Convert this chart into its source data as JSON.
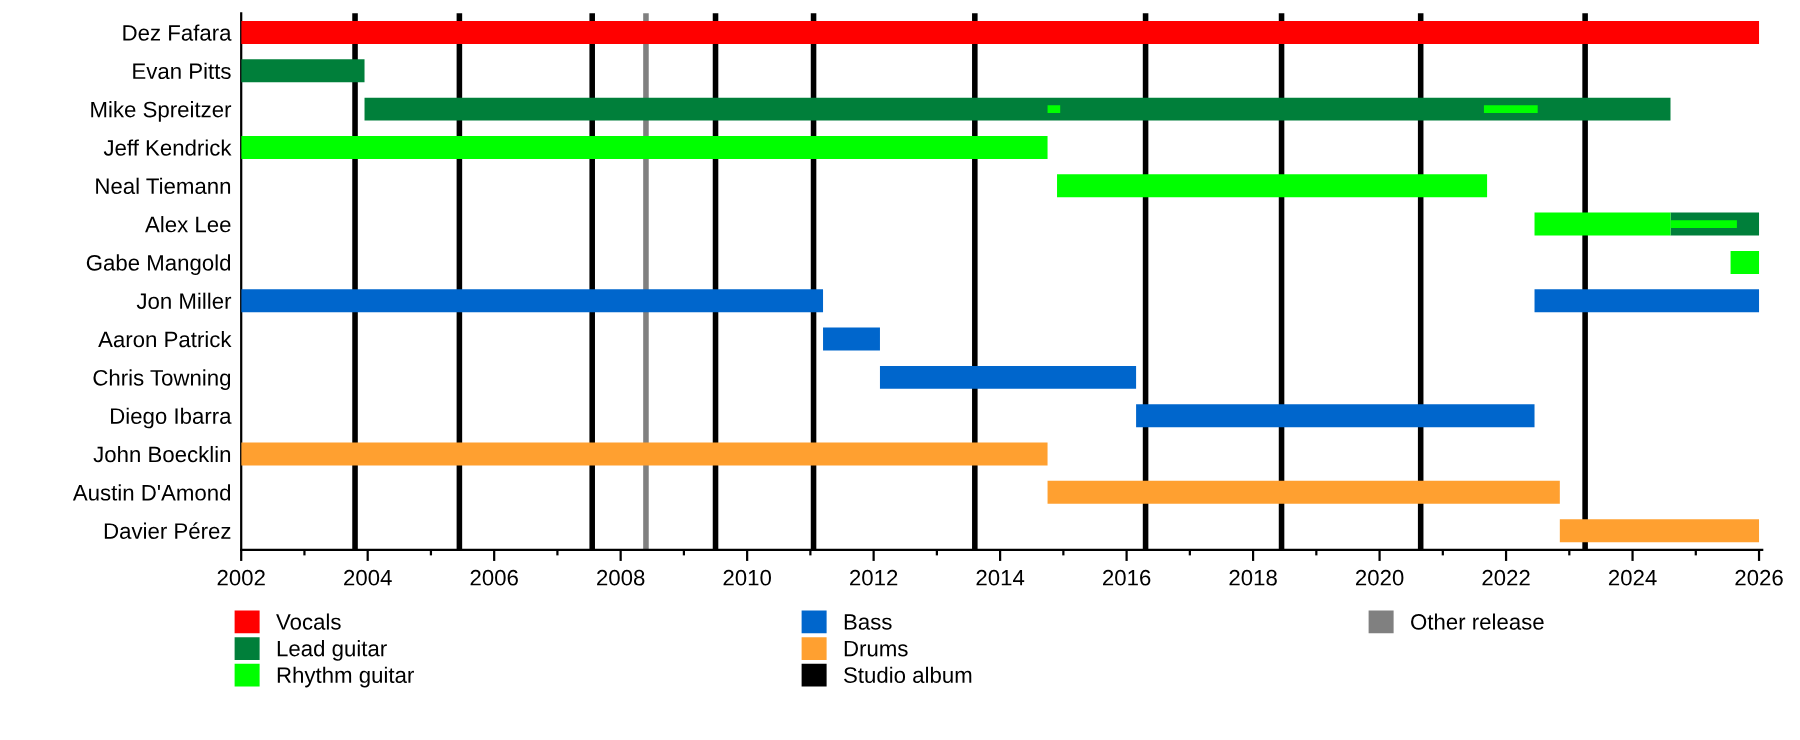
{
  "chart_data": {
    "type": "bar",
    "orientation": "horizontal",
    "categories": [
      "Dez Fafara",
      "Evan Pitts",
      "Mike Spreitzer",
      "Jeff Kendrick",
      "Neal Tiemann",
      "Alex Lee",
      "Gabe Mangold",
      "Jon Miller",
      "Aaron Patrick",
      "Chris Towning",
      "Diego Ibarra",
      "John Boecklin",
      "Austin D'Amond",
      "Davier Pérez"
    ],
    "series": [
      {
        "name": "Vocals",
        "color": "#ff0000",
        "base": [
          2002,
          null,
          null,
          null,
          null,
          null,
          null,
          null,
          null,
          null,
          null,
          null,
          null,
          null
        ],
        "values": [
          24.0,
          null,
          null,
          null,
          null,
          null,
          null,
          null,
          null,
          null,
          null,
          null,
          null,
          null
        ]
      },
      {
        "name": "Lead guitar",
        "color": "#007f3a",
        "base": [
          null,
          2002,
          2003.95,
          null,
          null,
          2024.6,
          null,
          null,
          null,
          null,
          null,
          null,
          null,
          null
        ],
        "values": [
          null,
          1.95,
          20.65,
          null,
          null,
          1.4,
          null,
          null,
          null,
          null,
          null,
          null,
          null,
          null
        ]
      },
      {
        "name": "Rhythm guitar",
        "color": "#00ff00",
        "base": [
          null,
          null,
          null,
          2002,
          2014.9,
          2022.45,
          2025.55,
          null,
          null,
          null,
          null,
          null,
          null,
          null
        ],
        "values": [
          null,
          null,
          null,
          12.75,
          6.8,
          2.15,
          0.45,
          null,
          null,
          null,
          null,
          null,
          null,
          null
        ]
      },
      {
        "color": "#00ff00",
        "base": [
          null,
          null,
          2014.75,
          null,
          null,
          2024.6,
          null,
          null,
          null,
          null,
          null,
          null,
          null,
          null
        ],
        "values": [
          null,
          null,
          0.2,
          null,
          null,
          1.05,
          null,
          null,
          null,
          null,
          null,
          null,
          null,
          null
        ]
      },
      {
        "color": "#00ff00",
        "base": [
          null,
          null,
          2021.65,
          null,
          null,
          null,
          null,
          null,
          null,
          null,
          null,
          null,
          null,
          null
        ],
        "values": [
          null,
          null,
          0.85,
          null,
          null,
          null,
          null,
          null,
          null,
          null,
          null,
          null,
          null,
          null
        ]
      },
      {
        "name": "Bass",
        "color": "#0066cc",
        "base": [
          null,
          null,
          null,
          null,
          null,
          null,
          null,
          2002,
          2011.2,
          2012.1,
          2016.15,
          null,
          null,
          null
        ],
        "values": [
          null,
          null,
          null,
          null,
          null,
          null,
          null,
          9.2,
          0.9,
          4.05,
          6.3,
          null,
          null,
          null
        ]
      },
      {
        "color": "#0066cc",
        "base": [
          null,
          null,
          null,
          null,
          null,
          null,
          null,
          2022.45,
          null,
          null,
          null,
          null,
          null,
          null
        ],
        "values": [
          null,
          null,
          null,
          null,
          null,
          null,
          null,
          3.55,
          null,
          null,
          null,
          null,
          null,
          null
        ]
      },
      {
        "name": "Drums",
        "color": "#ffa030",
        "base": [
          null,
          null,
          null,
          null,
          null,
          null,
          null,
          null,
          null,
          null,
          null,
          2002,
          2014.75,
          2022.85
        ],
        "values": [
          null,
          null,
          null,
          null,
          null,
          null,
          null,
          null,
          null,
          null,
          null,
          12.75,
          8.1,
          3.15
        ]
      }
    ],
    "ref_lines": [
      {
        "axis": "x",
        "value": 2003.8,
        "label": "Studio album",
        "color": "#000000"
      },
      {
        "axis": "x",
        "value": 2005.45,
        "color": "#000000"
      },
      {
        "axis": "x",
        "value": 2007.55,
        "color": "#000000"
      },
      {
        "axis": "x",
        "value": 2009.5,
        "color": "#000000"
      },
      {
        "axis": "x",
        "value": 2011.05,
        "color": "#000000"
      },
      {
        "axis": "x",
        "value": 2013.6,
        "color": "#000000"
      },
      {
        "axis": "x",
        "value": 2016.3,
        "color": "#000000"
      },
      {
        "axis": "x",
        "value": 2018.45,
        "color": "#000000"
      },
      {
        "axis": "x",
        "value": 2020.65,
        "color": "#000000"
      },
      {
        "axis": "x",
        "value": 2023.25,
        "color": "#000000"
      },
      {
        "axis": "x",
        "value": 2008.4,
        "label": "Other release",
        "color": "#808080"
      }
    ],
    "xlim": [
      2002,
      2026.05
    ],
    "xticks": [
      2002,
      {
        "value": 2003,
        "label": null
      },
      2004,
      {
        "value": 2005,
        "label": null
      },
      2006,
      {
        "value": 2007,
        "label": null
      },
      2008,
      {
        "value": 2009,
        "label": null
      },
      2010,
      {
        "value": 2011,
        "label": null
      },
      2012,
      {
        "value": 2013,
        "label": null
      },
      2014,
      {
        "value": 2015,
        "label": null
      },
      2016,
      {
        "value": 2017,
        "label": null
      },
      2018,
      {
        "value": 2019,
        "label": null
      },
      2020,
      {
        "value": 2021,
        "label": null
      },
      2022,
      {
        "value": 2023,
        "label": null
      },
      2024,
      {
        "value": 2025,
        "label": null
      },
      2026
    ],
    "grid": false,
    "legend": "bottom"
  }
}
